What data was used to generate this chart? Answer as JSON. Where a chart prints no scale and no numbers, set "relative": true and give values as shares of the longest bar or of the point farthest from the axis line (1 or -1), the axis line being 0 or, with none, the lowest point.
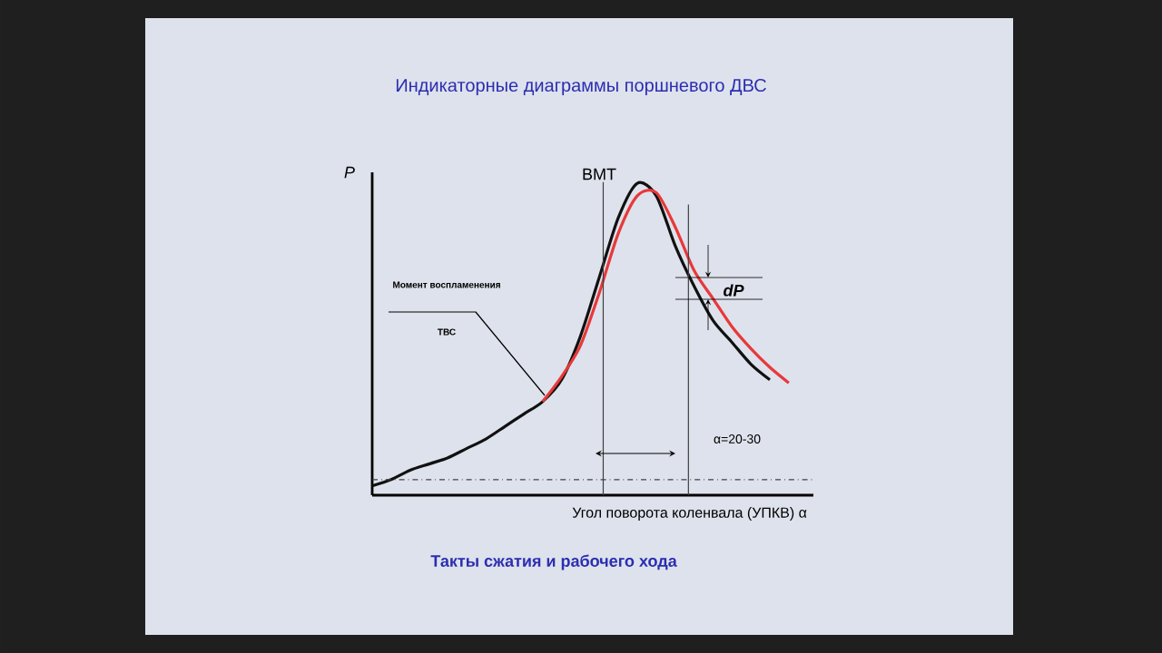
{
  "chart_data": {
    "type": "line",
    "title": "Индикаторные диаграммы поршневого ДВС",
    "xlabel": "Угол поворота коленвала (УПКВ) α",
    "ylabel": "P",
    "relative": true,
    "categories": [
      null,
      null,
      null,
      null,
      null,
      null,
      null,
      null,
      null,
      null,
      null,
      null,
      null,
      null,
      null,
      null,
      null,
      null,
      null,
      null,
      null,
      null,
      null
    ],
    "series": [
      {
        "color": "#111111",
        "values": [
          0.03,
          0.05,
          0.08,
          0.1,
          0.12,
          0.15,
          0.18,
          0.22,
          0.26,
          0.3,
          0.37,
          0.51,
          0.7,
          0.89,
          1.0,
          0.96,
          0.8,
          0.67,
          0.56,
          0.49,
          0.42,
          0.37,
          null
        ]
      },
      {
        "color": "#e8393a",
        "values": [
          null,
          null,
          null,
          null,
          null,
          null,
          null,
          null,
          null,
          0.3,
          0.38,
          0.48,
          0.65,
          0.84,
          0.96,
          0.97,
          0.86,
          0.72,
          0.63,
          0.54,
          0.47,
          0.41,
          0.36
        ]
      }
    ],
    "ref_lines": [
      {
        "axis": "y",
        "value": 0.05,
        "line_style": "dashed"
      }
    ],
    "annotations": [
      "BMT",
      "dP",
      "Момент воспламенения",
      "ТВС",
      "α=20-30",
      "Такты сжатия и рабочего хода"
    ]
  }
}
